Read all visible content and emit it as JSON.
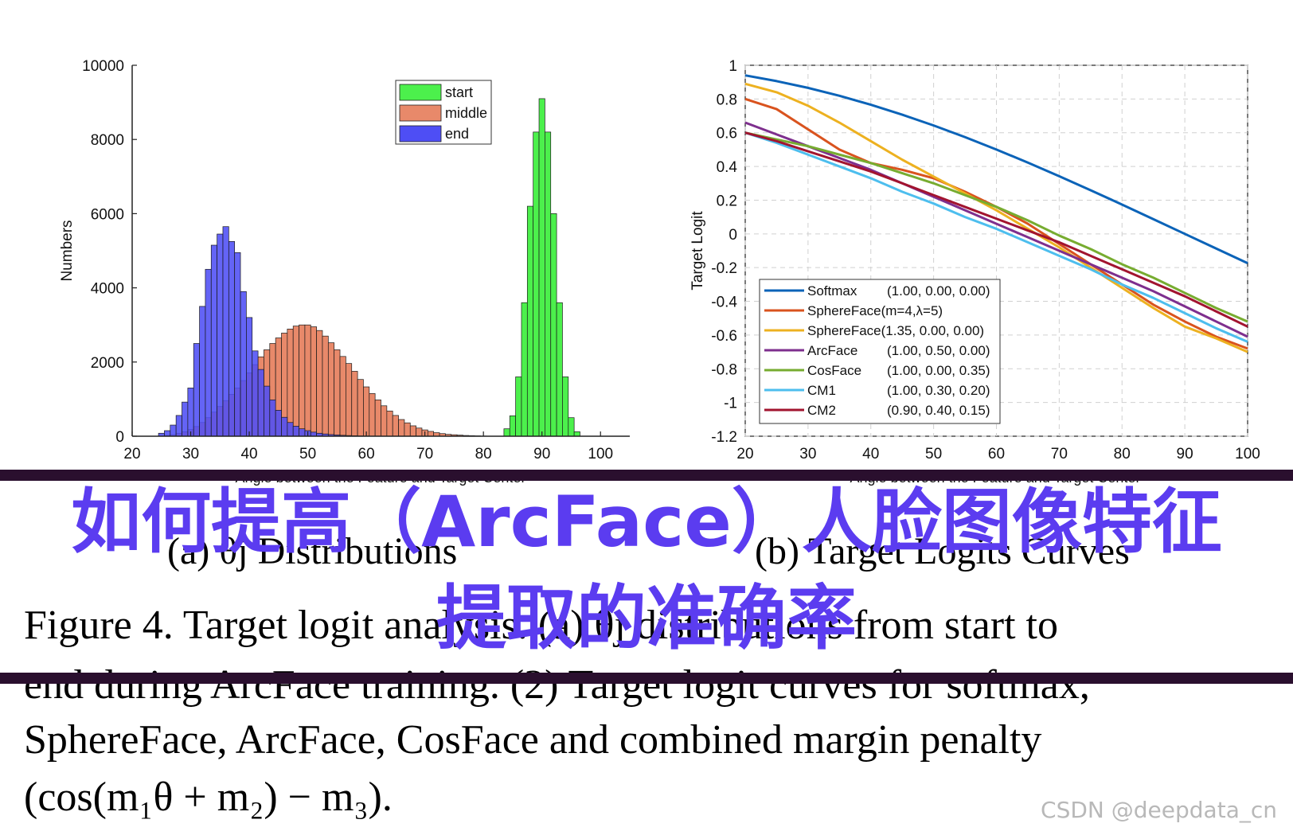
{
  "chart_data": [
    {
      "type": "bar",
      "panel": "left",
      "ylabel": "Numbers",
      "xlabel": "Angle between the Feature and Target Center",
      "xlim": [
        20,
        105
      ],
      "ylim": [
        0,
        10000
      ],
      "x_ticks": [
        "20",
        "30",
        "40",
        "50",
        "60",
        "70",
        "80",
        "90",
        "100"
      ],
      "y_ticks": [
        "0",
        "2000",
        "4000",
        "6000",
        "8000",
        "10000"
      ],
      "legend_position": "top-center",
      "bin_width": 1,
      "series": [
        {
          "name": "start",
          "color": "#4cf04c",
          "x": [
            84,
            85,
            86,
            87,
            88,
            89,
            90,
            91,
            92,
            93,
            94,
            95,
            96
          ],
          "values": [
            200,
            550,
            1600,
            3600,
            6200,
            8200,
            9100,
            8200,
            6000,
            3600,
            1600,
            500,
            120
          ]
        },
        {
          "name": "middle",
          "color": "#e8896a",
          "x": [
            26,
            27,
            28,
            29,
            30,
            31,
            32,
            33,
            34,
            35,
            36,
            37,
            38,
            39,
            40,
            41,
            42,
            43,
            44,
            45,
            46,
            47,
            48,
            49,
            50,
            51,
            52,
            53,
            54,
            55,
            56,
            57,
            58,
            59,
            60,
            61,
            62,
            63,
            64,
            65,
            66,
            67,
            68,
            69,
            70,
            71,
            72,
            73,
            74,
            75,
            76,
            77,
            78,
            79,
            80
          ],
          "values": [
            20,
            40,
            80,
            120,
            180,
            260,
            370,
            500,
            650,
            800,
            960,
            1130,
            1300,
            1500,
            1710,
            1930,
            2140,
            2330,
            2500,
            2650,
            2780,
            2890,
            2970,
            3000,
            3000,
            2950,
            2850,
            2700,
            2520,
            2330,
            2150,
            1960,
            1750,
            1530,
            1330,
            1150,
            980,
            820,
            680,
            560,
            450,
            360,
            280,
            220,
            170,
            130,
            95,
            70,
            50,
            40,
            30,
            20,
            15,
            10,
            5
          ]
        },
        {
          "name": "end",
          "color": "#4e4ef5",
          "x": [
            25,
            26,
            27,
            28,
            29,
            30,
            31,
            32,
            33,
            34,
            35,
            36,
            37,
            38,
            39,
            40,
            41,
            42,
            43,
            44,
            45,
            46,
            47,
            48,
            49,
            50,
            51,
            52,
            53,
            54,
            55,
            56,
            57,
            58,
            59,
            60
          ],
          "values": [
            80,
            150,
            300,
            560,
            920,
            1300,
            2500,
            3500,
            4500,
            5150,
            5450,
            5650,
            5250,
            4950,
            3900,
            3200,
            2300,
            1800,
            1350,
            980,
            700,
            510,
            370,
            270,
            200,
            150,
            110,
            80,
            60,
            45,
            35,
            25,
            18,
            12,
            8,
            5
          ]
        }
      ]
    },
    {
      "type": "line",
      "panel": "right",
      "ylabel": "Target Logit",
      "xlabel": "Angle between the Feature and Target Center",
      "xlim": [
        20,
        100
      ],
      "ylim": [
        -1.2,
        1
      ],
      "x_ticks": [
        "20",
        "30",
        "40",
        "50",
        "60",
        "70",
        "80",
        "90",
        "100"
      ],
      "y_ticks": [
        "1",
        "0.8",
        "0.6",
        "0.4",
        "0.2",
        "0",
        "-0.2",
        "-0.4",
        "-0.6",
        "-0.8",
        "-1",
        "-1.2"
      ],
      "grid": true,
      "legend_position": "bottom-left",
      "x": [
        20,
        25,
        30,
        35,
        40,
        45,
        50,
        55,
        60,
        65,
        70,
        75,
        80,
        85,
        90,
        95,
        100
      ],
      "series": [
        {
          "name": "Softmax",
          "params": "(1.00, 0.00, 0.00)",
          "color": "#0b63b8",
          "values": [
            0.94,
            0.906,
            0.866,
            0.819,
            0.766,
            0.707,
            0.643,
            0.574,
            0.5,
            0.423,
            0.342,
            0.259,
            0.174,
            0.087,
            0.0,
            -0.087,
            -0.174
          ]
        },
        {
          "name": "SphereFace(m=4,λ=5)",
          "params": "",
          "color": "#d9531e",
          "values": [
            0.8,
            0.74,
            0.62,
            0.5,
            0.42,
            0.38,
            0.33,
            0.25,
            0.16,
            0.06,
            -0.06,
            -0.18,
            -0.3,
            -0.42,
            -0.52,
            -0.61,
            -0.68
          ]
        },
        {
          "name": "SphereFace(1.35, 0.00, 0.00)",
          "params": "",
          "color": "#edb120",
          "values": [
            0.89,
            0.84,
            0.76,
            0.66,
            0.55,
            0.44,
            0.34,
            0.24,
            0.14,
            0.03,
            -0.08,
            -0.2,
            -0.32,
            -0.44,
            -0.55,
            -0.62,
            -0.7
          ]
        },
        {
          "name": "ArcFace",
          "params": "(1.00, 0.50, 0.00)",
          "color": "#7e2f8e",
          "values": [
            0.66,
            0.59,
            0.52,
            0.45,
            0.38,
            0.3,
            0.22,
            0.14,
            0.06,
            -0.02,
            -0.1,
            -0.18,
            -0.26,
            -0.34,
            -0.43,
            -0.52,
            -0.61
          ]
        },
        {
          "name": "CosFace",
          "params": "(1.00, 0.00, 0.35)",
          "color": "#77ac30",
          "values": [
            0.6,
            0.56,
            0.52,
            0.47,
            0.42,
            0.36,
            0.3,
            0.23,
            0.16,
            0.08,
            -0.01,
            -0.09,
            -0.18,
            -0.26,
            -0.35,
            -0.44,
            -0.52
          ]
        },
        {
          "name": "CM1",
          "params": "(1.00, 0.30, 0.20)",
          "color": "#4dbeee",
          "values": [
            0.6,
            0.54,
            0.47,
            0.4,
            0.33,
            0.25,
            0.18,
            0.1,
            0.03,
            -0.05,
            -0.13,
            -0.21,
            -0.3,
            -0.38,
            -0.47,
            -0.56,
            -0.64
          ]
        },
        {
          "name": "CM2",
          "params": "(0.90, 0.40, 0.15)",
          "color": "#a2142f",
          "values": [
            0.6,
            0.55,
            0.49,
            0.43,
            0.37,
            0.3,
            0.23,
            0.16,
            0.09,
            0.02,
            -0.05,
            -0.13,
            -0.21,
            -0.29,
            -0.37,
            -0.46,
            -0.55
          ]
        }
      ]
    }
  ],
  "captions": {
    "sub_a": "(a) θj Distributions",
    "sub_b": "(b) Target Logits Curves",
    "figure_lines": [
      "Figure 4. Target logit analysis. (a) θj distributions from start to",
      "end during ArcFace training. (2) Target logit curves for softmax,",
      "SphereFace, ArcFace, CosFace and combined margin penalty",
      "(cos(m₁θ + m₂) − m₃)."
    ]
  },
  "overlay": {
    "title_line1": "如何提高（ArcFace）人脸图像特征",
    "title_line2": "提取的准确率",
    "band_color": "#2a0f2e",
    "title_color": "#5b3cf0"
  },
  "watermark": "CSDN @deepdata_cn"
}
